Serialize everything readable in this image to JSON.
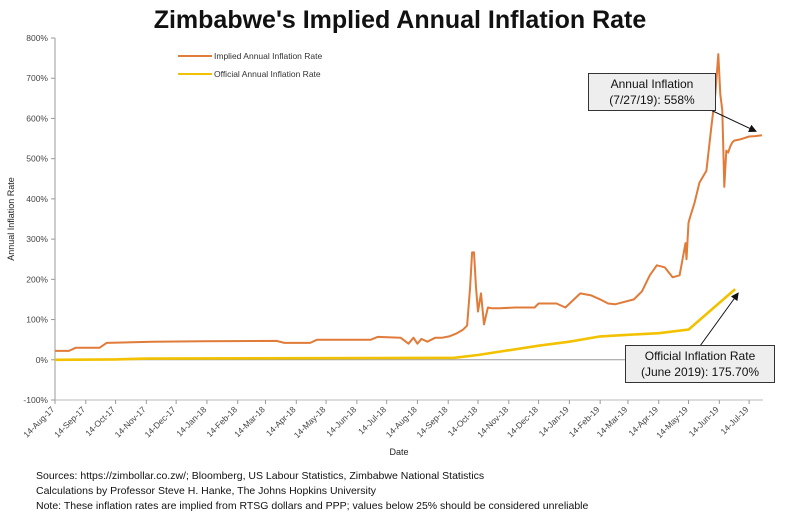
{
  "chart_data": {
    "type": "line",
    "title": "Zimbabwe's Implied Annual Inflation Rate",
    "xlabel": "Date",
    "ylabel": "Annual Inflation Rate",
    "ylim": [
      -100,
      800
    ],
    "yticks": [
      -100,
      0,
      100,
      200,
      300,
      400,
      500,
      600,
      700,
      800
    ],
    "ytick_labels": [
      "-100%",
      "0%",
      "100%",
      "200%",
      "300%",
      "400%",
      "500%",
      "600%",
      "700%",
      "800%"
    ],
    "xlim": [
      "2017-08-14",
      "2019-07-28"
    ],
    "xticks": [
      "2017-08-14",
      "2017-09-14",
      "2017-10-14",
      "2017-11-14",
      "2017-12-14",
      "2018-01-14",
      "2018-02-14",
      "2018-03-14",
      "2018-04-14",
      "2018-05-14",
      "2018-06-14",
      "2018-07-14",
      "2018-08-14",
      "2018-09-14",
      "2018-10-14",
      "2018-11-14",
      "2018-12-14",
      "2019-01-14",
      "2019-02-14",
      "2019-03-14",
      "2019-04-14",
      "2019-05-14",
      "2019-06-14",
      "2019-07-14"
    ],
    "xtick_labels": [
      "14-Aug-17",
      "14-Sep-17",
      "14-Oct-17",
      "14-Nov-17",
      "14-Dec-17",
      "14-Jan-18",
      "14-Feb-18",
      "14-Mar-18",
      "14-Apr-18",
      "14-May-18",
      "14-Jun-18",
      "14-Jul-18",
      "14-Aug-18",
      "14-Sep-18",
      "14-Oct-18",
      "14-Nov-18",
      "14-Dec-18",
      "14-Jan-19",
      "14-Feb-19",
      "14-Mar-19",
      "14-Apr-19",
      "14-May-19",
      "14-Jun-19",
      "14-Jul-19"
    ],
    "grid": false,
    "legend_position": "top-left",
    "series": [
      {
        "name": "Implied Annual Inflation Rate",
        "color": "#e07b39",
        "x": [
          "2017-08-14",
          "2017-08-28",
          "2017-09-04",
          "2017-09-28",
          "2017-10-05",
          "2017-11-20",
          "2018-01-10",
          "2018-03-25",
          "2018-04-02",
          "2018-04-28",
          "2018-05-05",
          "2018-06-28",
          "2018-07-05",
          "2018-07-28",
          "2018-08-05",
          "2018-08-10",
          "2018-08-14",
          "2018-08-18",
          "2018-08-24",
          "2018-09-01",
          "2018-09-08",
          "2018-09-15",
          "2018-09-22",
          "2018-09-29",
          "2018-10-03",
          "2018-10-06",
          "2018-10-08",
          "2018-10-10",
          "2018-10-12",
          "2018-10-14",
          "2018-10-17",
          "2018-10-20",
          "2018-10-24",
          "2018-10-28",
          "2018-11-05",
          "2018-11-20",
          "2018-12-10",
          "2018-12-14",
          "2019-01-01",
          "2019-01-10",
          "2019-01-25",
          "2019-02-05",
          "2019-02-14",
          "2019-02-22",
          "2019-03-01",
          "2019-03-20",
          "2019-03-28",
          "2019-04-05",
          "2019-04-12",
          "2019-04-20",
          "2019-04-28",
          "2019-05-05",
          "2019-05-11",
          "2019-05-12",
          "2019-05-14",
          "2019-05-15",
          "2019-05-20",
          "2019-05-25",
          "2019-06-01",
          "2019-06-06",
          "2019-06-10",
          "2019-06-13",
          "2019-06-15",
          "2019-06-17",
          "2019-06-19",
          "2019-06-21",
          "2019-06-23",
          "2019-06-25",
          "2019-06-27",
          "2019-06-29",
          "2019-07-05",
          "2019-07-14",
          "2019-07-20",
          "2019-07-27"
        ],
        "values": [
          22,
          22,
          30,
          30,
          42,
          45,
          46,
          47,
          42,
          42,
          50,
          50,
          57,
          55,
          40,
          55,
          40,
          52,
          45,
          55,
          55,
          58,
          65,
          75,
          85,
          180,
          267,
          267,
          180,
          120,
          165,
          88,
          130,
          128,
          128,
          130,
          130,
          140,
          140,
          130,
          165,
          160,
          150,
          140,
          138,
          150,
          170,
          210,
          235,
          230,
          205,
          210,
          290,
          250,
          340,
          350,
          390,
          440,
          470,
          580,
          660,
          760,
          660,
          620,
          430,
          520,
          515,
          530,
          540,
          545,
          548,
          555,
          556,
          558
        ]
      },
      {
        "name": "Official Annual Inflation Rate",
        "color": "#f2c200",
        "x": [
          "2017-08-14",
          "2017-10-14",
          "2017-11-14",
          "2018-09-20",
          "2018-10-14",
          "2018-12-14",
          "2019-01-14",
          "2019-02-14",
          "2019-03-14",
          "2019-04-14",
          "2019-05-14",
          "2019-06-30"
        ],
        "values": [
          0,
          1,
          3,
          5,
          12,
          35,
          45,
          58,
          62,
          66,
          75,
          175.7
        ]
      }
    ],
    "annotations": {
      "annual": {
        "line1": "Annual Inflation",
        "line2": "(7/27/19): 558%",
        "x": "2019-07-27",
        "y": 558
      },
      "official": {
        "line1": "Official Inflation Rate",
        "line2": "(June 2019): 175.70%",
        "x": "2019-06-30",
        "y": 175.7
      }
    }
  },
  "footer": {
    "line1": "Sources: https://zimbollar.co.zw/; Bloomberg, US Labour Statistics, Zimbabwe National Statistics",
    "line2": "Calculations by Professor Steve H. Hanke, The Johns Hopkins University",
    "line3": "Note: These inflation rates are implied from RTSG dollars and PPP; values below 25% should be considered unreliable"
  }
}
